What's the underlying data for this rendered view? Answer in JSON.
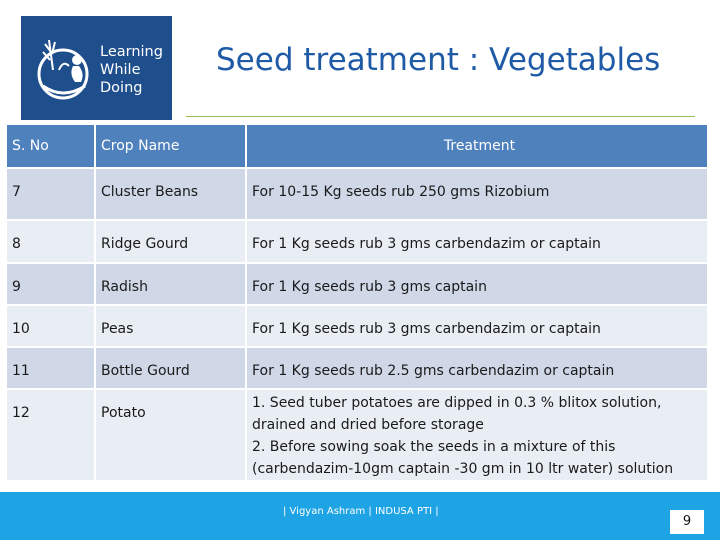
{
  "logo": {
    "line1": "Learning",
    "line2": "While",
    "line3": "Doing"
  },
  "title": "Seed treatment : Vegetables",
  "table": {
    "headers": [
      "S. No",
      "Crop Name",
      "Treatment"
    ],
    "rows": [
      {
        "no": "7",
        "crop": "Cluster Beans",
        "treatment": "For  10-15 Kg seeds  rub 250 gms Rizobium"
      },
      {
        "no": "8",
        "crop": "Ridge Gourd",
        "treatment": "For 1 Kg seeds  rub 3 gms  carbendazim or captain"
      },
      {
        "no": "9",
        "crop": "Radish",
        "treatment": "For 1 Kg seeds  rub 3 gms  captain"
      },
      {
        "no": "10",
        "crop": "Peas",
        "treatment": "For 1 Kg seeds  rub 3 gms  carbendazim or captain"
      },
      {
        "no": "11",
        "crop": "Bottle Gourd",
        "treatment": "For 1 Kg seeds  rub 2.5 gms  carbendazim or captain"
      },
      {
        "no": "12",
        "crop": "Potato",
        "treatment_lines": [
          "1. Seed tuber  potatoes are dipped in  0.3 % blitox solution,",
          "drained and dried before storage",
          "2.  Before sowing  soak the seeds in a mixture of  this",
          "(carbendazim-10gm  captain -30 gm in 10 ltr water) solution"
        ]
      }
    ]
  },
  "footer": {
    "text": "| Vigyan Ashram | INDUSA PTI |",
    "page": "9"
  },
  "colors": {
    "header": "#4f81bd",
    "row_odd": "#d0d8e8",
    "row_even": "#e9edf4",
    "footer": "#1ea3e4",
    "title": "#1f5aa6",
    "logo_bg": "#1f4e8c"
  }
}
